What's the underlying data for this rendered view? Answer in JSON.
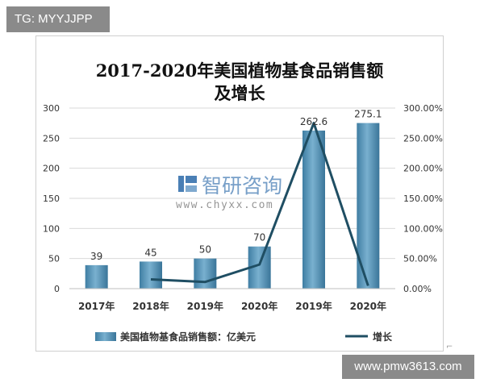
{
  "overlay": {
    "tag_text": "TG: MYYJJPP",
    "url_text": "www.pmw3613.com",
    "corner_mark": "⌐"
  },
  "watermark": {
    "name": "智研咨询",
    "url": "www.chyxx.com"
  },
  "chart_data": {
    "type": "bar",
    "title_lines": [
      "2017-2020年美国植物基食品销售额",
      "及增长"
    ],
    "categories": [
      "2017年",
      "2018年",
      "2019年",
      "2020年",
      "2019年",
      "2020年"
    ],
    "series": [
      {
        "name": "美国植物基食品销售额：亿美元",
        "type": "bar",
        "axis": "left",
        "values": [
          39,
          45,
          50,
          70,
          262.6,
          275.1
        ],
        "labels": [
          "39",
          "45",
          "50",
          "70",
          "262.6",
          "275.1"
        ],
        "color": "#4f8fb5"
      },
      {
        "name": "增长",
        "type": "line",
        "axis": "right",
        "values": [
          null,
          15.4,
          11.1,
          40.0,
          275.1,
          4.8
        ],
        "color": "#1f4e63"
      }
    ],
    "y_left": {
      "min": 0,
      "max": 300,
      "ticks": [
        0,
        50,
        100,
        150,
        200,
        250,
        300
      ],
      "tick_labels": [
        "0",
        "50",
        "100",
        "150",
        "200",
        "250",
        "300"
      ]
    },
    "y_right": {
      "min": 0,
      "max": 300,
      "ticks": [
        0,
        50,
        100,
        150,
        200,
        250,
        300
      ],
      "tick_labels": [
        "0.00%",
        "50.00%",
        "100.00%",
        "150.00%",
        "200.00%",
        "250.00%",
        "300.00%"
      ]
    },
    "grid": true,
    "legend_position": "bottom"
  }
}
